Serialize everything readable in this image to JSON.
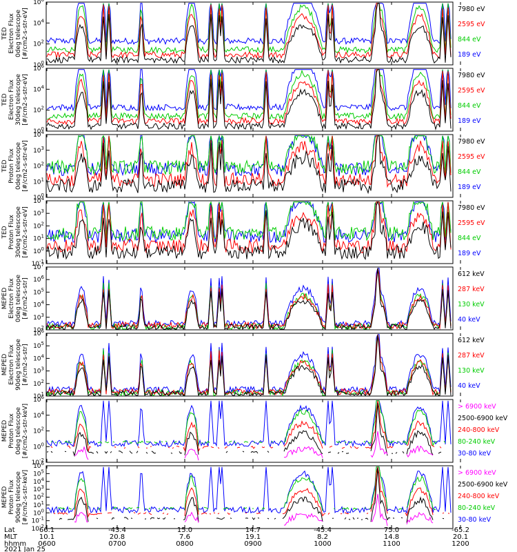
{
  "chart_data": {
    "type": "line",
    "date_label": "2021 Jan 25",
    "xaxis": {
      "row_labels": [
        "Lat",
        "MLT",
        "hhmm"
      ],
      "ticks": [
        {
          "lat": "66.1",
          "mlt": "10.1",
          "hhmm": "0600"
        },
        {
          "lat": "-43.4",
          "mlt": "20.8",
          "hhmm": "0700"
        },
        {
          "lat": "15.0",
          "mlt": "7.6",
          "hhmm": "0800"
        },
        {
          "lat": "14.7",
          "mlt": "19.1",
          "hhmm": "0900"
        },
        {
          "lat": "-45.4",
          "mlt": "8.2",
          "hhmm": "1000"
        },
        {
          "lat": "75.0",
          "mlt": "14.8",
          "hhmm": "1100"
        },
        {
          "lat": "-65.2",
          "mlt": "20.1",
          "hhmm": "1200"
        }
      ]
    },
    "panels": [
      {
        "ylabel": [
          "TED",
          "Electron Flux",
          "0deg telescope",
          "[#/cm2-s-str-eV]"
        ],
        "ylim_exp": [
          0,
          6
        ],
        "ytick_exp": [
          0,
          2,
          4,
          6
        ],
        "legend": [
          {
            "label": "7980 eV",
            "color": "#000000"
          },
          {
            "label": "2595 eV",
            "color": "#ff0000"
          },
          {
            "label": "844 eV",
            "color": "#00cc00"
          },
          {
            "label": "189 eV",
            "color": "#0000ff"
          }
        ]
      },
      {
        "ylabel": [
          "TED",
          "Electron Flux",
          "30deg telescope",
          "[#/cm2-s-str-eV]"
        ],
        "ylim_exp": [
          0,
          6
        ],
        "ytick_exp": [
          0,
          2,
          4,
          6
        ],
        "legend": [
          {
            "label": "7980 eV",
            "color": "#000000"
          },
          {
            "label": "2595 eV",
            "color": "#ff0000"
          },
          {
            "label": "844 eV",
            "color": "#00cc00"
          },
          {
            "label": "189 eV",
            "color": "#0000ff"
          }
        ]
      },
      {
        "ylabel": [
          "TED",
          "Proton Flux",
          "0deg telescope",
          "[#/cm2-s-str-eV]"
        ],
        "ylim_exp": [
          0,
          4
        ],
        "ytick_exp": [
          0,
          1,
          2,
          3,
          4
        ],
        "legend": [
          {
            "label": "7980 eV",
            "color": "#000000"
          },
          {
            "label": "2595 eV",
            "color": "#ff0000"
          },
          {
            "label": "844 eV",
            "color": "#00cc00"
          },
          {
            "label": "189 eV",
            "color": "#0000ff"
          }
        ]
      },
      {
        "ylabel": [
          "TED",
          "Proton Flux",
          "30deg telescope",
          "[#/cm2-s-str-eV]"
        ],
        "ylim_exp": [
          -1,
          4
        ],
        "ytick_exp": [
          -1,
          0,
          1,
          2,
          3,
          4
        ],
        "legend": [
          {
            "label": "7980 eV",
            "color": "#000000"
          },
          {
            "label": "2595 eV",
            "color": "#ff0000"
          },
          {
            "label": "844 eV",
            "color": "#00cc00"
          },
          {
            "label": "189 eV",
            "color": "#0000ff"
          }
        ]
      },
      {
        "ylabel": [
          "MEPED",
          "Electron Flux",
          "0deg telescope",
          "[#/cm2-s-str]"
        ],
        "ylim_exp": [
          2,
          7
        ],
        "ytick_exp": [
          2,
          3,
          4,
          5,
          6,
          7
        ],
        "legend": [
          {
            "label": "612 keV",
            "color": "#000000"
          },
          {
            "label": "287 keV",
            "color": "#ff0000"
          },
          {
            "label": "130 keV",
            "color": "#00cc00"
          },
          {
            "label": "40 keV",
            "color": "#0000ff"
          }
        ]
      },
      {
        "ylabel": [
          "MEPED",
          "Electron Flux",
          "90deg telescope",
          "[#/cm2-s-str]"
        ],
        "ylim_exp": [
          1,
          6
        ],
        "ytick_exp": [
          1,
          2,
          3,
          4,
          5,
          6
        ],
        "legend": [
          {
            "label": "612 keV",
            "color": "#000000"
          },
          {
            "label": "287 keV",
            "color": "#ff0000"
          },
          {
            "label": "130 keV",
            "color": "#00cc00"
          },
          {
            "label": "40 keV",
            "color": "#0000ff"
          }
        ]
      },
      {
        "ylabel": [
          "MEPED",
          "Proton Flux",
          "0deg telescope",
          "[#/cm2-s-str-keV]"
        ],
        "ylim_exp": [
          -2,
          6
        ],
        "ytick_exp": [
          -2,
          0,
          2,
          4,
          6
        ],
        "legend": [
          {
            "label": "> 6900 keV",
            "color": "#ff00ff"
          },
          {
            "label": "2500-6900 keV",
            "color": "#000000"
          },
          {
            "label": "240-800 keV",
            "color": "#ff0000"
          },
          {
            "label": "80-240 keV",
            "color": "#00cc00"
          },
          {
            "label": "30-80 keV",
            "color": "#0000ff"
          }
        ]
      },
      {
        "ylabel": [
          "MEPED",
          "Proton Flux",
          "90deg telescope",
          "[#/cm2-s-str-keV]"
        ],
        "ylim_exp": [
          -2,
          6
        ],
        "ytick_exp": [
          -2,
          -1,
          0,
          1,
          2,
          3,
          4,
          5,
          6
        ],
        "legend": [
          {
            "label": "> 6900 keV",
            "color": "#ff00ff"
          },
          {
            "label": "2500-6900 keV",
            "color": "#000000"
          },
          {
            "label": "240-800 keV",
            "color": "#ff0000"
          },
          {
            "label": "80-240 keV",
            "color": "#00cc00"
          },
          {
            "label": "30-80 keV",
            "color": "#0000ff"
          }
        ]
      }
    ]
  }
}
